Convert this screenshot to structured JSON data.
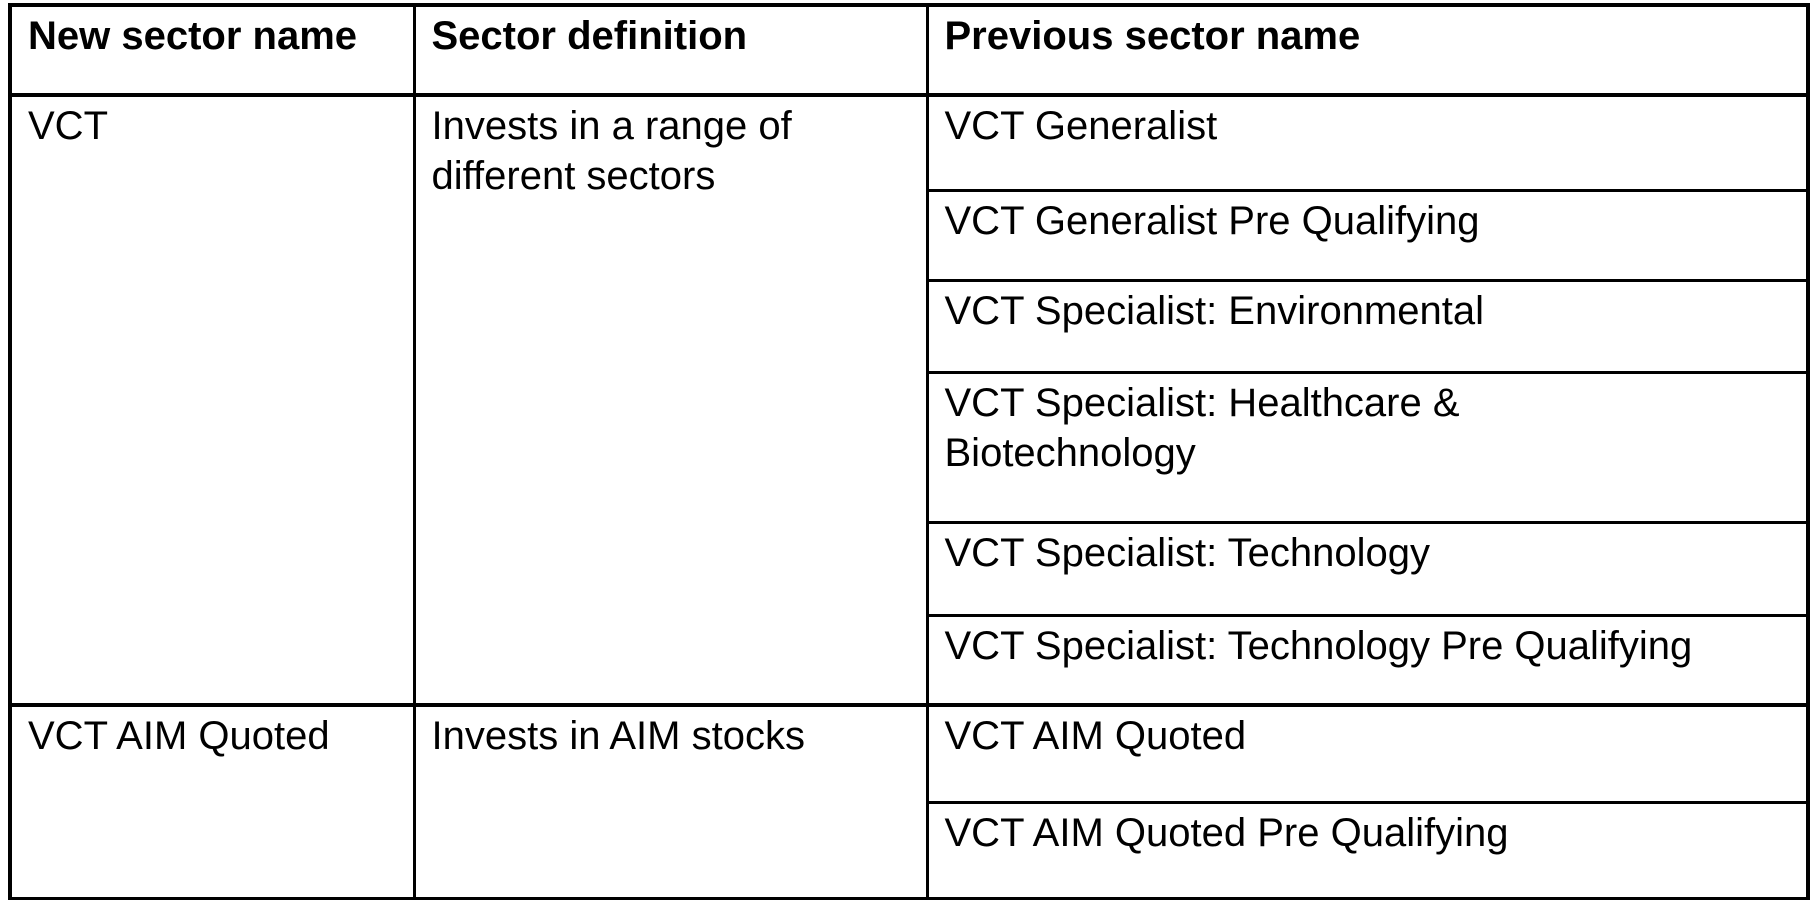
{
  "table": {
    "headers": {
      "new_sector_name": "New sector name",
      "sector_definition": "Sector definition",
      "previous_sector_name": "Previous sector name"
    },
    "groups": [
      {
        "new_sector_name": "VCT",
        "sector_definition": "Invests in a range of\ndifferent sectors",
        "previous_sector_names": [
          "VCT Generalist",
          "VCT Generalist Pre Qualifying",
          "VCT Specialist: Environmental",
          "VCT Specialist: Healthcare &\nBiotechnology",
          "VCT Specialist: Technology",
          "VCT Specialist: Technology Pre Qualifying"
        ]
      },
      {
        "new_sector_name": "VCT AIM Quoted",
        "sector_definition": "Invests in AIM stocks",
        "previous_sector_names": [
          "VCT AIM Quoted",
          "VCT AIM Quoted Pre Qualifying"
        ]
      }
    ],
    "colors": {
      "border": "#000000",
      "text": "#000000",
      "background": "#ffffff"
    }
  }
}
